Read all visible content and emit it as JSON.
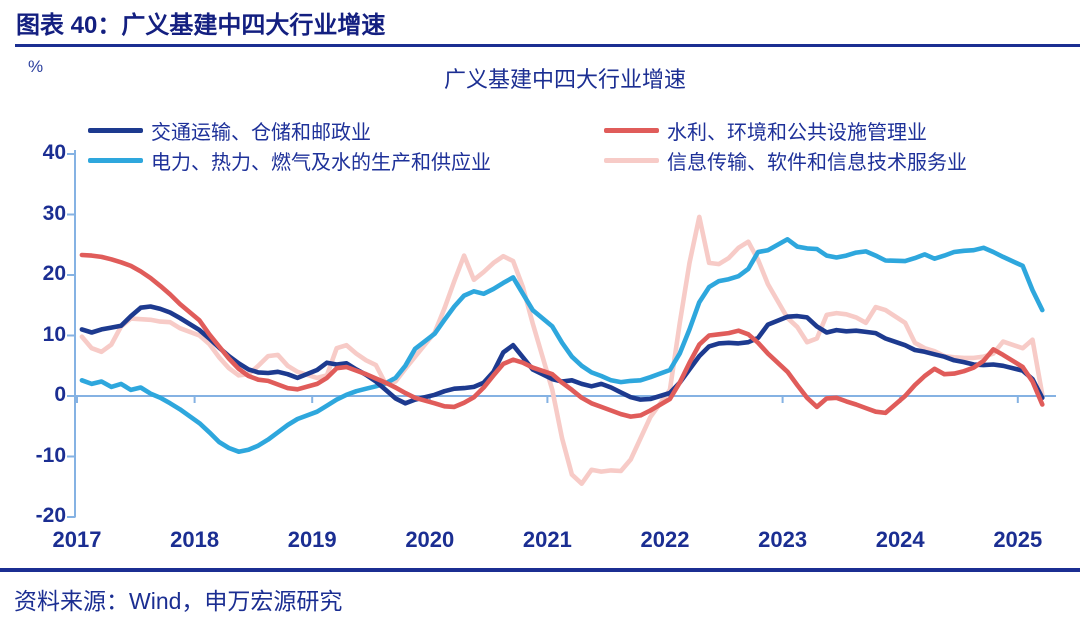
{
  "page": {
    "figure_label": "图表 40：广义基建中四大行业增速",
    "source_note": "资料来源：Wind，申万宏源研究"
  },
  "colors": {
    "header_text": "#131f80",
    "body_text": "#1b2e92",
    "rule": "#1b2e92",
    "axis": "#85b2e3",
    "series_transport": "#1d3a8f",
    "series_water_env": "#e05c5a",
    "series_power": "#2ea7dd",
    "series_it_services": "#f7cbc7"
  },
  "chart_data": {
    "type": "line",
    "title": "广义基建中四大行业增速",
    "unit": "%",
    "xlabel": "",
    "ylabel": "%",
    "ylim": [
      -20,
      40
    ],
    "yticks": [
      40,
      30,
      20,
      10,
      0,
      -10,
      -20
    ],
    "xticks": [
      2017,
      2018,
      2019,
      2020,
      2021,
      2022,
      2023,
      2024,
      2025
    ],
    "grid": "off",
    "legend_position": "top",
    "x_sampling": {
      "frequency": "monthly (cumulative YTD, Feb–Dec each year, no January)",
      "start": "2017-02",
      "end": "2025-04",
      "points_per_series": 91
    },
    "series": [
      {
        "key": "transport",
        "name": "交通运输、仓储和邮政业",
        "color": "#1d3a8f",
        "values": [
          11.0,
          10.5,
          11.0,
          11.3,
          11.6,
          13.2,
          14.6,
          14.8,
          14.4,
          13.8,
          12.9,
          10.9,
          9.5,
          8.0,
          6.6,
          5.4,
          4.4,
          3.9,
          3.8,
          4.0,
          3.6,
          3.0,
          4.3,
          5.5,
          5.2,
          5.4,
          4.4,
          3.5,
          2.4,
          1.0,
          -0.4,
          -1.2,
          -0.6,
          0.2,
          0.8,
          1.2,
          1.3,
          1.5,
          2.2,
          4.0,
          7.2,
          8.4,
          6.4,
          4.4,
          2.8,
          2.4,
          2.6,
          2.0,
          1.6,
          2.0,
          1.4,
          0.6,
          -0.2,
          -0.6,
          -0.5,
          0.5,
          2.2,
          4.4,
          6.6,
          8.2,
          8.7,
          8.8,
          8.7,
          8.9,
          9.6,
          11.8,
          13.1,
          13.2,
          13.0,
          11.5,
          10.5,
          10.9,
          10.7,
          10.8,
          10.6,
          10.4,
          9.5,
          8.4,
          7.6,
          7.3,
          6.9,
          6.5,
          5.9,
          5.6,
          5.2,
          5.1,
          5.2,
          5.0,
          4.2,
          2.8,
          -0.3
        ]
      },
      {
        "key": "water-env",
        "name": "水利、环境和公共设施管理业",
        "color": "#e05c5a",
        "values": [
          23.3,
          23.2,
          23.0,
          22.6,
          22.1,
          21.5,
          20.6,
          19.5,
          18.2,
          16.8,
          15.2,
          12.5,
          10.2,
          8.2,
          6.2,
          4.5,
          3.3,
          2.7,
          2.5,
          1.9,
          1.3,
          1.1,
          2.0,
          3.0,
          4.6,
          4.8,
          4.2,
          3.6,
          2.9,
          2.2,
          1.4,
          0.5,
          -0.3,
          -1.2,
          -1.7,
          -1.8,
          -1.1,
          -0.2,
          1.4,
          3.4,
          5.3,
          6.0,
          5.5,
          4.7,
          3.6,
          2.2,
          1.0,
          -0.3,
          -1.2,
          -1.8,
          -2.4,
          -3.0,
          -3.4,
          -3.2,
          -2.4,
          -0.5,
          2.2,
          5.5,
          8.5,
          10.0,
          10.2,
          10.4,
          10.8,
          10.2,
          8.8,
          7.0,
          4.0,
          1.8,
          -0.3,
          -1.8,
          -0.4,
          -0.3,
          -0.9,
          -1.4,
          -2.0,
          -2.6,
          -2.8,
          0.0,
          1.8,
          3.3,
          4.5,
          3.6,
          3.7,
          4.1,
          4.7,
          5.8,
          7.7,
          6.8,
          4.8,
          2.4,
          -1.4
        ]
      },
      {
        "key": "power",
        "name": "电力、热力、燃气及水的生产和供应业",
        "color": "#2ea7dd",
        "values": [
          2.6,
          2.0,
          2.4,
          1.5,
          2.0,
          1.0,
          1.4,
          0.4,
          -0.3,
          -1.2,
          -2.2,
          -4.5,
          -6.0,
          -7.6,
          -8.6,
          -9.2,
          -8.9,
          -8.2,
          -7.2,
          -6.0,
          -4.8,
          -3.8,
          -2.6,
          -1.6,
          -0.6,
          0.2,
          0.8,
          1.2,
          1.6,
          2.1,
          3.0,
          5.0,
          7.8,
          10.3,
          12.6,
          14.8,
          16.6,
          17.3,
          16.9,
          17.7,
          18.7,
          19.6,
          16.9,
          14.2,
          11.5,
          8.8,
          6.5,
          5.0,
          3.9,
          3.3,
          2.6,
          2.3,
          2.5,
          2.6,
          3.1,
          4.3,
          7.0,
          11.0,
          15.5,
          18.0,
          19.0,
          19.3,
          19.8,
          21.0,
          23.8,
          24.1,
          25.9,
          24.7,
          24.4,
          24.3,
          23.2,
          22.9,
          23.2,
          23.7,
          23.9,
          23.2,
          22.4,
          22.3,
          22.8,
          23.4,
          22.7,
          23.2,
          23.8,
          24.0,
          24.1,
          24.5,
          23.8,
          23.0,
          21.5,
          17.5,
          14.2
        ]
      },
      {
        "key": "it-services",
        "name": "信息传输、软件和信息技术服务业",
        "color": "#f7cbc7",
        "values": [
          9.8,
          7.9,
          7.3,
          8.5,
          11.5,
          12.8,
          12.7,
          12.6,
          12.3,
          12.2,
          11.2,
          10.0,
          8.6,
          6.4,
          4.6,
          3.4,
          3.6,
          5.0,
          6.6,
          6.8,
          5.0,
          4.0,
          3.0,
          3.4,
          7.9,
          8.4,
          7.0,
          5.9,
          5.1,
          2.0,
          2.4,
          4.5,
          6.5,
          10.5,
          14.5,
          19.0,
          23.2,
          19.2,
          20.5,
          22.0,
          23.1,
          22.3,
          18.0,
          12.0,
          1.0,
          -7.0,
          -13.0,
          -14.5,
          -12.2,
          -12.5,
          -12.3,
          -12.4,
          -10.5,
          -7.0,
          -3.5,
          1.0,
          12.0,
          22.0,
          29.6,
          22.0,
          21.8,
          22.8,
          24.5,
          25.5,
          22.5,
          18.5,
          12.9,
          11.4,
          8.9,
          9.5,
          13.4,
          13.7,
          13.5,
          13.0,
          12.1,
          14.7,
          14.2,
          12.1,
          8.8,
          7.9,
          7.4,
          6.6,
          6.4,
          6.3,
          6.3,
          6.5,
          7.0,
          9.0,
          7.9,
          9.3,
          0.2
        ]
      }
    ]
  }
}
